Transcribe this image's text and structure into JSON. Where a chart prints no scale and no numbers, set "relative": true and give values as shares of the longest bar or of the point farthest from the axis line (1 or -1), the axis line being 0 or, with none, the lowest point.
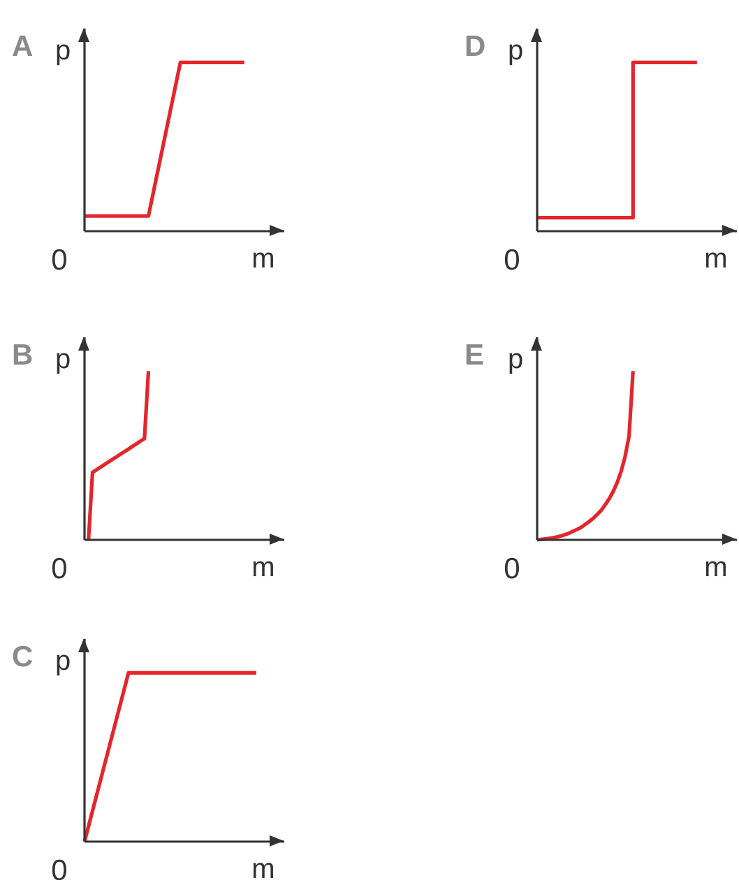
{
  "chart_data": [
    {
      "type": "line",
      "title": "A",
      "xlabel": "m",
      "ylabel": "p",
      "relative": true,
      "categories": [
        null,
        null,
        null,
        null,
        null,
        null,
        null,
        null,
        null,
        null,
        null,
        null,
        null,
        null,
        null,
        null,
        null,
        null,
        null,
        null,
        null,
        null,
        null,
        null,
        null,
        null,
        null,
        null,
        null,
        null,
        null,
        null,
        null,
        null,
        null,
        null,
        null,
        null,
        null,
        null,
        null
      ],
      "series": [
        {
          "color": "#e4262c",
          "values": [
            0.09,
            0.09,
            0.09,
            0.09,
            0.09,
            0.09,
            0.09,
            0.09,
            0.09,
            0.09,
            0.09,
            0.09,
            0.09,
            0.09,
            0.09,
            0.09,
            0.09,
            0.204,
            0.318,
            0.431,
            0.545,
            0.659,
            0.773,
            0.886,
            1,
            1,
            1,
            1,
            1,
            1,
            1,
            1,
            1,
            1,
            1,
            1,
            1,
            1,
            1,
            1,
            1
          ]
        }
      ],
      "annotations": [
        "0"
      ]
    },
    {
      "type": "step",
      "title": "D",
      "xlabel": "m",
      "ylabel": "p",
      "relative": true,
      "categories": [
        null,
        null,
        null,
        null,
        null,
        null,
        null,
        null,
        null,
        null,
        null,
        null,
        null,
        null,
        null,
        null,
        null,
        null,
        null,
        null,
        null,
        null,
        null,
        null,
        null,
        null,
        null,
        null,
        null,
        null,
        null,
        null,
        null,
        null,
        null,
        null,
        null,
        null,
        null,
        null,
        null
      ],
      "series": [
        {
          "color": "#e4262c",
          "values": [
            0.08,
            0.08,
            0.08,
            0.08,
            0.08,
            0.08,
            0.08,
            0.08,
            0.08,
            0.08,
            0.08,
            0.08,
            0.08,
            0.08,
            0.08,
            0.08,
            0.08,
            0.08,
            0.08,
            0.08,
            0.08,
            0.08,
            0.08,
            0.08,
            1,
            1,
            1,
            1,
            1,
            1,
            1,
            1,
            1,
            1,
            1,
            1,
            1,
            1,
            1,
            1,
            1
          ]
        }
      ],
      "annotations": [
        "0"
      ]
    },
    {
      "type": "line",
      "title": "B",
      "xlabel": "m",
      "ylabel": "p",
      "relative": true,
      "categories": [
        null,
        null,
        null,
        null,
        null,
        null,
        null,
        null,
        null,
        null,
        null,
        null,
        null,
        null,
        null,
        null,
        null
      ],
      "series": [
        {
          "color": "#e4262c",
          "values": [
            null,
            0,
            0.4,
            0.415,
            0.431,
            0.446,
            0.462,
            0.477,
            0.492,
            0.508,
            0.523,
            0.538,
            0.554,
            0.569,
            0.585,
            0.6,
            1
          ]
        }
      ],
      "annotations": [
        "0"
      ]
    },
    {
      "type": "line",
      "title": "E",
      "xlabel": "m",
      "ylabel": "p",
      "relative": true,
      "categories": [
        null,
        null,
        null,
        null,
        null,
        null,
        null,
        null,
        null,
        null,
        null,
        null,
        null,
        null,
        null,
        null,
        null,
        null,
        null,
        null,
        null,
        null,
        null,
        null,
        null
      ],
      "series": [
        {
          "color": "#e4262c",
          "values": [
            0,
            0.003,
            0.006,
            0.009,
            0.012,
            0.018,
            0.024,
            0.031,
            0.04,
            0.051,
            0.062,
            0.074,
            0.091,
            0.108,
            0.127,
            0.15,
            0.174,
            0.207,
            0.242,
            0.285,
            0.338,
            0.404,
            0.492,
            0.614,
            1
          ]
        }
      ],
      "annotations": [
        "0"
      ]
    },
    {
      "type": "line",
      "title": "C",
      "xlabel": "m",
      "ylabel": "p",
      "relative": true,
      "categories": [
        null,
        null,
        null,
        null,
        null,
        null,
        null,
        null,
        null,
        null,
        null,
        null,
        null,
        null,
        null,
        null,
        null,
        null,
        null,
        null,
        null,
        null,
        null,
        null,
        null,
        null,
        null,
        null,
        null,
        null,
        null,
        null,
        null,
        null,
        null,
        null,
        null,
        null,
        null,
        null,
        null,
        null,
        null,
        null
      ],
      "series": [
        {
          "color": "#e4262c",
          "values": [
            0,
            0.091,
            0.182,
            0.273,
            0.364,
            0.455,
            0.545,
            0.636,
            0.727,
            0.818,
            0.909,
            1,
            1,
            1,
            1,
            1,
            1,
            1,
            1,
            1,
            1,
            1,
            1,
            1,
            1,
            1,
            1,
            1,
            1,
            1,
            1,
            1,
            1,
            1,
            1,
            1,
            1,
            1,
            1,
            1,
            1,
            1,
            1,
            1
          ]
        }
      ],
      "annotations": [
        "0"
      ]
    }
  ]
}
